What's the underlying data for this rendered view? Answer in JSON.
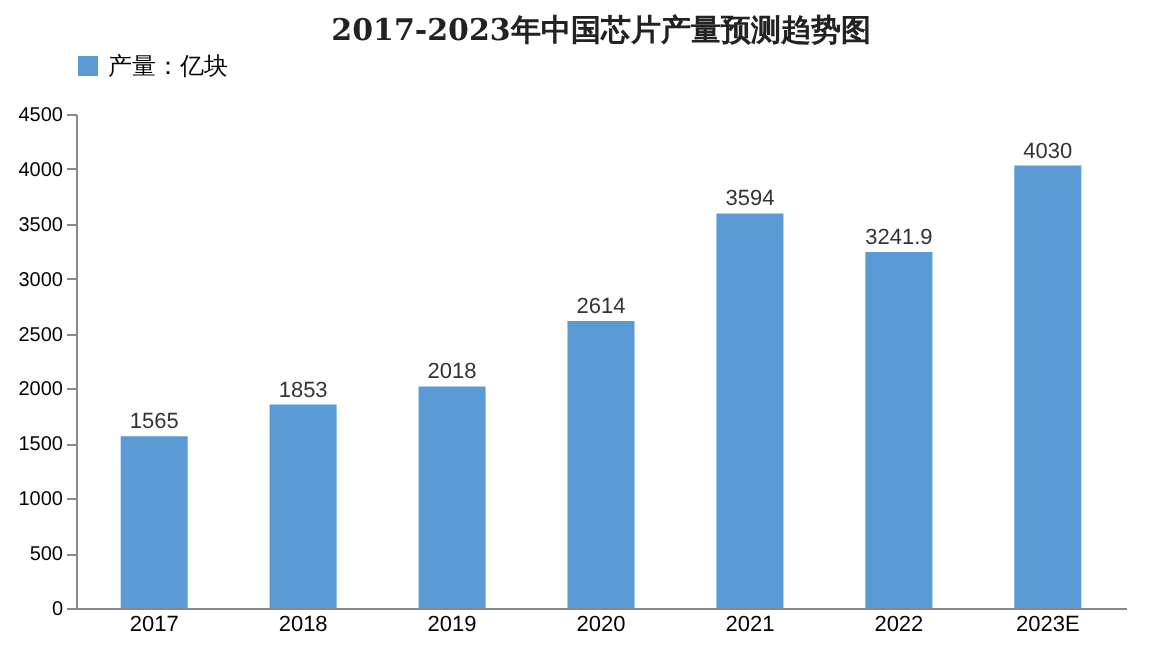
{
  "chart_data": {
    "type": "bar",
    "title": "2017-2023年中国芯片产量预测趋势图",
    "categories": [
      "2017",
      "2018",
      "2019",
      "2020",
      "2021",
      "2022",
      "2023E"
    ],
    "series": [
      {
        "name": "产量：亿块",
        "color": "#5b9bd5",
        "values": [
          1565,
          1853,
          2018,
          2614,
          3594,
          3241.9,
          4030
        ]
      }
    ],
    "ylim": [
      0,
      4500
    ],
    "yticks": [
      0,
      500,
      1000,
      1500,
      2000,
      2500,
      3000,
      3500,
      4000,
      4500
    ],
    "grid": false,
    "legend": "top",
    "data_labels": true
  }
}
